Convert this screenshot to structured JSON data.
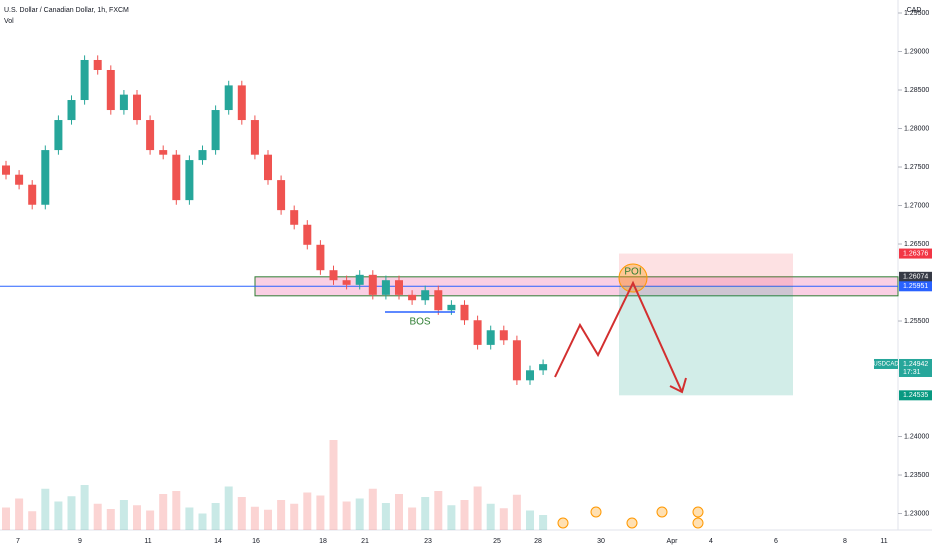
{
  "header": {
    "title": "U.S. Dollar / Canadian Dollar, 1h, FXCM",
    "indicator": "Vol",
    "currency": "CAD"
  },
  "chart_data": {
    "type": "candlestick",
    "open": [
      1.2752,
      1.274,
      1.2727,
      1.2701,
      1.2772,
      1.2811,
      1.2837,
      1.2889,
      1.2876,
      1.2824,
      1.2844,
      1.2811,
      1.2772,
      1.2766,
      1.2707,
      1.2759,
      1.2772,
      1.2824,
      1.2856,
      1.2811,
      1.2766,
      1.2733,
      1.2694,
      1.2675,
      1.2649,
      1.2616,
      1.2603,
      1.2597,
      1.261,
      1.2584,
      1.2603,
      1.2584,
      1.2577,
      1.259,
      1.2564,
      1.2571,
      1.2551,
      1.2519,
      1.2538,
      1.2525,
      1.2473,
      1.2486
    ],
    "high": [
      1.2758,
      1.2746,
      1.2733,
      1.2778,
      1.2817,
      1.2843,
      1.2895,
      1.2895,
      1.2882,
      1.285,
      1.285,
      1.2817,
      1.2778,
      1.2772,
      1.2765,
      1.2778,
      1.283,
      1.2862,
      1.2862,
      1.2817,
      1.2772,
      1.2739,
      1.27,
      1.2681,
      1.2655,
      1.2622,
      1.2609,
      1.2616,
      1.2616,
      1.2609,
      1.2609,
      1.259,
      1.2596,
      1.2596,
      1.2577,
      1.2577,
      1.2557,
      1.2544,
      1.2544,
      1.2531,
      1.2492,
      1.25
    ],
    "low": [
      1.2734,
      1.2721,
      1.2695,
      1.2695,
      1.2766,
      1.2805,
      1.2831,
      1.287,
      1.2818,
      1.2818,
      1.2805,
      1.2766,
      1.276,
      1.2701,
      1.2701,
      1.2753,
      1.2766,
      1.2818,
      1.2805,
      1.276,
      1.2727,
      1.2688,
      1.2669,
      1.2643,
      1.261,
      1.2597,
      1.2591,
      1.2591,
      1.2578,
      1.2578,
      1.2578,
      1.2571,
      1.2571,
      1.2558,
      1.2558,
      1.2545,
      1.2513,
      1.2513,
      1.2519,
      1.2467,
      1.2467,
      1.248
    ],
    "close": [
      1.274,
      1.2727,
      1.2701,
      1.2772,
      1.2811,
      1.2837,
      1.2889,
      1.2876,
      1.2824,
      1.2844,
      1.2811,
      1.2772,
      1.2766,
      1.2707,
      1.2759,
      1.2772,
      1.2824,
      1.2856,
      1.2811,
      1.2766,
      1.2733,
      1.2694,
      1.2675,
      1.2649,
      1.2616,
      1.2603,
      1.2597,
      1.261,
      1.2584,
      1.2603,
      1.2584,
      1.2577,
      1.259,
      1.2564,
      1.2571,
      1.2551,
      1.2519,
      1.2538,
      1.2525,
      1.2473,
      1.2486,
      1.2494
    ],
    "volume": [
      30,
      42,
      25,
      55,
      38,
      45,
      60,
      35,
      28,
      40,
      33,
      26,
      48,
      52,
      30,
      22,
      36,
      58,
      44,
      31,
      27,
      40,
      35,
      50,
      46,
      120,
      38,
      42,
      55,
      36,
      48,
      30,
      44,
      52,
      33,
      40,
      58,
      35,
      29,
      47,
      26,
      20
    ],
    "up_color": "#26a69a",
    "down_color": "#ef5350",
    "ylim": [
      1.22786,
      1.29669
    ],
    "yticks": [
      {
        "value": 1.295,
        "label": "1.29500"
      },
      {
        "value": 1.29,
        "label": "1.29000"
      },
      {
        "value": 1.285,
        "label": "1.28500"
      },
      {
        "value": 1.28,
        "label": "1.28000"
      },
      {
        "value": 1.275,
        "label": "1.27500"
      },
      {
        "value": 1.27,
        "label": "1.27000"
      },
      {
        "value": 1.265,
        "label": "1.26500"
      },
      {
        "value": 1.255,
        "label": "1.25500"
      },
      {
        "value": 1.24,
        "label": "1.24000"
      },
      {
        "value": 1.235,
        "label": "1.23500"
      },
      {
        "value": 1.23,
        "label": "1.23000"
      }
    ],
    "x_labels": [
      "7",
      "9",
      "11",
      "14",
      "16",
      "18",
      "21",
      "23",
      "25",
      "28",
      "30",
      "Apr",
      "4",
      "6",
      "8",
      "11"
    ],
    "price_labels": [
      {
        "value": 1.26376,
        "label": "1.26376",
        "color": "#f23645"
      },
      {
        "value": 1.26074,
        "label": "1.26074",
        "color": "#363a45"
      },
      {
        "value": 1.25951,
        "label": "1.25951",
        "color": "#2962ff"
      },
      {
        "value": 1.24535,
        "label": "1.24535",
        "color": "#089981"
      }
    ],
    "last_price": {
      "value": 1.24942,
      "label": "1.24942",
      "symbol": "USDCAD",
      "countdown": "17:31",
      "color": "#26a69a"
    },
    "annotations": {
      "poi": "POI",
      "bos": "BOS"
    }
  }
}
